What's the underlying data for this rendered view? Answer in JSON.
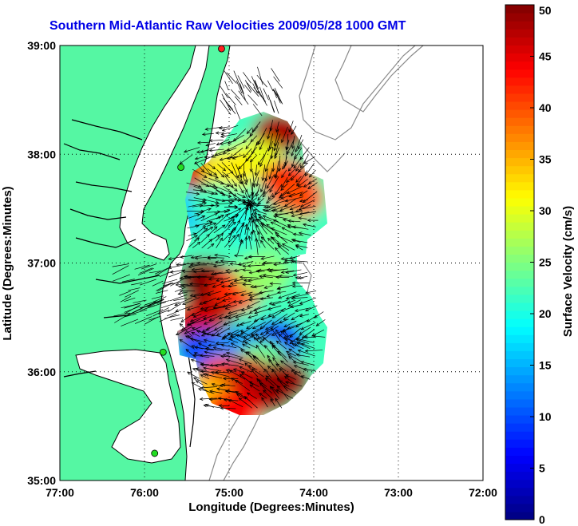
{
  "chart_data": {
    "type": "heatmap",
    "title": "Southern Mid-Atlantic Raw Velocities 2009/05/28 1000 GMT",
    "xlabel": "Longitude (Degrees:Minutes)",
    "ylabel": "Latitude (Degrees:Minutes)",
    "colorbar_label": "Surface Velocity (cm/s)",
    "xlim": [
      -77,
      -72
    ],
    "ylim": [
      35,
      39
    ],
    "x_ticks": [
      {
        "value": -77,
        "label": "77:00"
      },
      {
        "value": -76,
        "label": "76:00"
      },
      {
        "value": -75,
        "label": "75:00"
      },
      {
        "value": -74,
        "label": "74:00"
      },
      {
        "value": -73,
        "label": "73:00"
      },
      {
        "value": -72,
        "label": "72:00"
      }
    ],
    "y_ticks": [
      {
        "value": 35,
        "label": "35:00"
      },
      {
        "value": 36,
        "label": "36:00"
      },
      {
        "value": 37,
        "label": "37:00"
      },
      {
        "value": 38,
        "label": "38:00"
      },
      {
        "value": 39,
        "label": "39:00"
      }
    ],
    "colorbar_range": [
      0,
      50
    ],
    "colorbar_ticks": [
      "0",
      "5",
      "10",
      "15",
      "20",
      "25",
      "30",
      "35",
      "40",
      "45",
      "50"
    ],
    "colormap": "jet",
    "grid": true,
    "grid_style": "dotted",
    "colors": {
      "land": "#55f7a3",
      "water": "#ffffff",
      "coastline": "#000000",
      "bathymetry": "#8a8a8a",
      "arrows": "#000000",
      "title": "#0000e6",
      "station": "#22dd22",
      "station_highlight": "#ff2020"
    },
    "stations": [
      {
        "lon": -75.09,
        "lat": 38.97,
        "color": "station_highlight"
      },
      {
        "lon": -75.57,
        "lat": 37.88,
        "color": "station"
      },
      {
        "lon": -75.78,
        "lat": 36.18,
        "color": "station"
      },
      {
        "lon": -75.88,
        "lat": 35.25,
        "color": "station"
      }
    ],
    "velocity_patches": [
      {
        "lon": -74.4,
        "lat": 38.2,
        "speed": 48
      },
      {
        "lon": -74.7,
        "lat": 37.95,
        "speed": 30
      },
      {
        "lon": -74.3,
        "lat": 37.75,
        "speed": 44
      },
      {
        "lon": -74.2,
        "lat": 37.6,
        "speed": 40
      },
      {
        "lon": -75.3,
        "lat": 37.82,
        "speed": 46
      },
      {
        "lon": -75.0,
        "lat": 37.85,
        "speed": 32
      },
      {
        "lon": -75.45,
        "lat": 37.5,
        "speed": 16
      },
      {
        "lon": -75.15,
        "lat": 37.55,
        "speed": 22
      },
      {
        "lon": -74.75,
        "lat": 37.35,
        "speed": 20
      },
      {
        "lon": -74.4,
        "lat": 37.3,
        "speed": 24
      },
      {
        "lon": -75.3,
        "lat": 36.85,
        "speed": 50
      },
      {
        "lon": -75.2,
        "lat": 36.6,
        "speed": 50
      },
      {
        "lon": -75.4,
        "lat": 36.45,
        "speed": 46
      },
      {
        "lon": -74.9,
        "lat": 36.75,
        "speed": 42
      },
      {
        "lon": -74.6,
        "lat": 36.9,
        "speed": 26
      },
      {
        "lon": -74.4,
        "lat": 36.55,
        "speed": 22
      },
      {
        "lon": -75.3,
        "lat": 36.2,
        "speed": 10
      },
      {
        "lon": -74.9,
        "lat": 36.22,
        "speed": 13
      },
      {
        "lon": -74.45,
        "lat": 36.28,
        "speed": 8
      },
      {
        "lon": -74.6,
        "lat": 36.1,
        "speed": 24
      },
      {
        "lon": -75.05,
        "lat": 35.95,
        "speed": 40
      },
      {
        "lon": -74.8,
        "lat": 35.95,
        "speed": 46
      },
      {
        "lon": -74.55,
        "lat": 35.8,
        "speed": 48
      },
      {
        "lon": -74.35,
        "lat": 35.92,
        "speed": 49
      },
      {
        "lon": -75.25,
        "lat": 35.75,
        "speed": 34
      },
      {
        "lon": -74.95,
        "lat": 35.65,
        "speed": 44
      }
    ]
  }
}
